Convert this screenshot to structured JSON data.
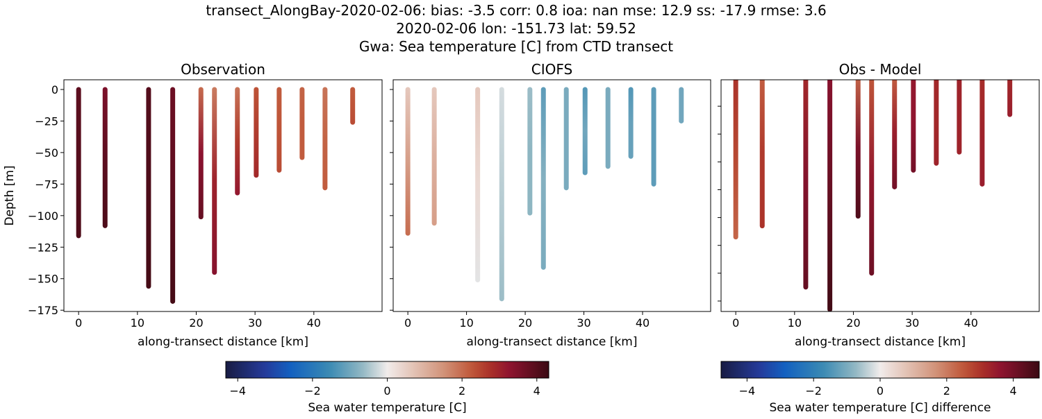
{
  "title_lines": [
    "transect_AlongBay-2020-02-06: bias: -3.5  corr: 0.8  ioa: nan  mse: 12.9  ss: -17.9  rmse: 3.6",
    "2020-02-06 lon: -151.73 lat: 59.52",
    "Gwa: Sea temperature [C] from CTD transect"
  ],
  "colors": {
    "colormap": "balance (diverging navy-blue-white-red-maroon)"
  },
  "chart_data": [
    {
      "type": "scatter",
      "title": "Observation",
      "xlabel": "along-transect distance [km]",
      "ylabel": "Depth [m]",
      "xlim": [
        -2.5,
        51.6
      ],
      "ylim": [
        -176,
        7.7
      ],
      "xticks": [
        0,
        10,
        20,
        30,
        40
      ],
      "yticks": [
        0,
        -25,
        -50,
        -75,
        -100,
        -125,
        -150,
        -175
      ],
      "ytick_labels_visible": true,
      "grid": false,
      "stations_km": [
        0,
        4.5,
        11.9,
        16,
        20.8,
        23.1,
        27,
        30.2,
        34.1,
        38,
        41.9,
        46.6
      ],
      "max_depth_m": [
        116,
        108,
        156,
        168,
        101,
        145,
        82,
        68,
        64,
        54,
        78,
        26
      ],
      "temperature_profile_top_mid_bottom": [
        [
          3.9,
          4.0,
          4.1
        ],
        [
          3.5,
          3.9,
          4.1
        ],
        [
          4.0,
          4.1,
          4.2
        ],
        [
          3.7,
          3.9,
          4.2
        ],
        [
          2.0,
          3.3,
          3.8
        ],
        [
          1.8,
          3.0,
          3.4
        ],
        [
          1.9,
          2.6,
          3.2
        ],
        [
          2.3,
          2.6,
          2.9
        ],
        [
          2.2,
          2.3,
          2.4
        ],
        [
          2.1,
          2.2,
          2.2
        ],
        [
          1.9,
          2.1,
          2.2
        ],
        [
          2.2,
          2.3,
          2.4
        ]
      ]
    },
    {
      "type": "scatter",
      "title": "CIOFS",
      "xlabel": "along-transect distance [km]",
      "xlim": [
        -2.5,
        51.6
      ],
      "ylim": [
        -176,
        7.7
      ],
      "xticks": [
        0,
        10,
        20,
        30,
        40
      ],
      "yticks": [
        0,
        -25,
        -50,
        -75,
        -100,
        -125,
        -150,
        -175
      ],
      "ytick_labels_visible": false,
      "grid": false,
      "stations_km": [
        0,
        4.5,
        11.9,
        16,
        20.8,
        23.1,
        27,
        30.2,
        34.1,
        38,
        41.9,
        46.6
      ],
      "max_depth_m": [
        114,
        106,
        151,
        166,
        98,
        141,
        78,
        66,
        61,
        53,
        75,
        25
      ],
      "temperature_profile_top_mid_bottom": [
        [
          0.6,
          1.3,
          2.0
        ],
        [
          0.6,
          1.0,
          1.3
        ],
        [
          0.6,
          0.3,
          -0.1
        ],
        [
          -0.2,
          -0.4,
          -0.6
        ],
        [
          -0.6,
          -0.7,
          -0.7
        ],
        [
          -1.2,
          -0.8,
          -0.9
        ],
        [
          -0.9,
          -0.9,
          -0.9
        ],
        [
          -1.3,
          -1.0,
          -1.2
        ],
        [
          -0.9,
          -0.9,
          -0.9
        ],
        [
          -1.3,
          -1.1,
          -1.1
        ],
        [
          -1.2,
          -1.2,
          -1.2
        ],
        [
          -1.0,
          -1.0,
          -1.0
        ]
      ]
    },
    {
      "type": "scatter",
      "title": "Obs - Model",
      "xlabel": "along-transect distance [km]",
      "xlim": [
        -2.5,
        51.6
      ],
      "ylim": [
        -167.5,
        -1
      ],
      "xticks": [
        0,
        10,
        20,
        30,
        40
      ],
      "yticks": [
        -20,
        -40,
        -60,
        -80,
        -100,
        -120,
        -140,
        -160
      ],
      "ytick_labels_visible": false,
      "grid": false,
      "stations_km": [
        0,
        4.5,
        11.9,
        16,
        20.8,
        23.1,
        27,
        30.2,
        34.1,
        38,
        41.9,
        46.6
      ],
      "max_depth_m": [
        114,
        106,
        150,
        166,
        99,
        140,
        78,
        66,
        61,
        53,
        76,
        26
      ],
      "temperature_profile_top_mid_bottom": [
        [
          3.0,
          2.7,
          2.3
        ],
        [
          2.4,
          2.9,
          3.0
        ],
        [
          3.2,
          3.8,
          4.2
        ],
        [
          3.7,
          4.2,
          4.7
        ],
        [
          2.3,
          3.9,
          4.5
        ],
        [
          2.5,
          3.5,
          4.1
        ],
        [
          2.4,
          3.4,
          4.0
        ],
        [
          3.5,
          3.6,
          4.0
        ],
        [
          3.2,
          3.2,
          3.3
        ],
        [
          3.3,
          3.3,
          3.3
        ],
        [
          3.1,
          3.3,
          3.4
        ],
        [
          3.2,
          3.3,
          3.4
        ]
      ]
    }
  ],
  "colorbars": [
    {
      "label": "Sea water temperature [C]",
      "range": [
        -4.32,
        4.32
      ],
      "ticks": [
        -4,
        -2,
        0,
        2,
        4
      ]
    },
    {
      "label": "Sea water temperature [C] difference",
      "range": [
        -4.78,
        4.78
      ],
      "ticks": [
        -4,
        -2,
        0,
        2,
        4
      ]
    }
  ]
}
